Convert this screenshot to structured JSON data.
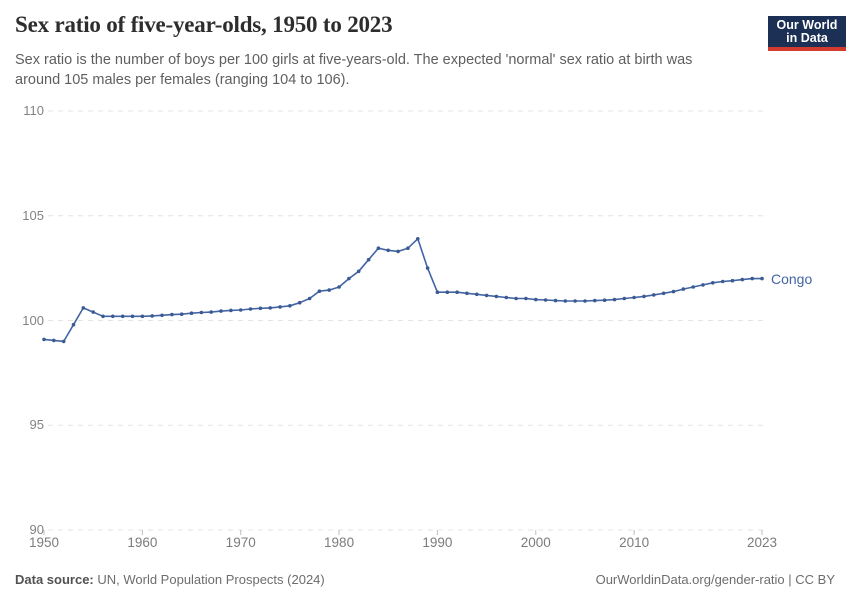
{
  "header": {
    "title": "Sex ratio of five-year-olds, 1950 to 2023",
    "subtitle": "Sex ratio is the number of boys per 100 girls at five-years-old. The expected 'normal' sex ratio at birth was around 105 males per females (ranging 104 to 106).",
    "logo": {
      "line1": "Our World",
      "line2": "in Data"
    }
  },
  "chart_data": {
    "type": "line",
    "title": "Sex ratio of five-year-olds, 1950 to 2023",
    "xlabel": "",
    "ylabel": "",
    "ylim": [
      90,
      110
    ],
    "y_ticks": [
      90,
      95,
      100,
      105,
      110
    ],
    "x_ticks": [
      1950,
      1960,
      1970,
      1980,
      1990,
      2000,
      2010,
      2023
    ],
    "grid": "dashed-horizontal",
    "legend_position": "end-of-line-label",
    "x": [
      1950,
      1951,
      1952,
      1953,
      1954,
      1955,
      1956,
      1957,
      1958,
      1959,
      1960,
      1961,
      1962,
      1963,
      1964,
      1965,
      1966,
      1967,
      1968,
      1969,
      1970,
      1971,
      1972,
      1973,
      1974,
      1975,
      1976,
      1977,
      1978,
      1979,
      1980,
      1981,
      1982,
      1983,
      1984,
      1985,
      1986,
      1987,
      1988,
      1989,
      1990,
      1991,
      1992,
      1993,
      1994,
      1995,
      1996,
      1997,
      1998,
      1999,
      2000,
      2001,
      2002,
      2003,
      2004,
      2005,
      2006,
      2007,
      2008,
      2009,
      2010,
      2011,
      2012,
      2013,
      2014,
      2015,
      2016,
      2017,
      2018,
      2019,
      2020,
      2021,
      2022,
      2023
    ],
    "series": [
      {
        "name": "Congo",
        "color": "#4464A4",
        "marker_color": "#3A5A94",
        "values": [
          99.1,
          99.05,
          99.0,
          99.8,
          100.6,
          100.4,
          100.2,
          100.2,
          100.2,
          100.2,
          100.2,
          100.22,
          100.25,
          100.28,
          100.3,
          100.35,
          100.38,
          100.4,
          100.45,
          100.48,
          100.5,
          100.55,
          100.58,
          100.6,
          100.65,
          100.7,
          100.85,
          101.05,
          101.4,
          101.45,
          101.6,
          102.0,
          102.35,
          102.9,
          103.45,
          103.35,
          103.3,
          103.45,
          103.9,
          102.5,
          101.35,
          101.35,
          101.35,
          101.3,
          101.25,
          101.2,
          101.15,
          101.1,
          101.05,
          101.05,
          101.0,
          100.98,
          100.95,
          100.93,
          100.93,
          100.93,
          100.95,
          100.97,
          101.0,
          101.05,
          101.1,
          101.15,
          101.22,
          101.3,
          101.38,
          101.5,
          101.6,
          101.7,
          101.8,
          101.86,
          101.9,
          101.95,
          102.0,
          102.0
        ]
      }
    ]
  },
  "footer": {
    "source_label": "Data source:",
    "source_text": " UN, World Population Prospects (2024)",
    "right_text": "OurWorldinData.org/gender-ratio | CC BY"
  },
  "colors": {
    "line": "#4464A4",
    "grid": "#E3E3E3",
    "tick_mark": "#BDBDBD",
    "logo_bg": "#1C3055",
    "logo_accent": "#D23A2E"
  }
}
